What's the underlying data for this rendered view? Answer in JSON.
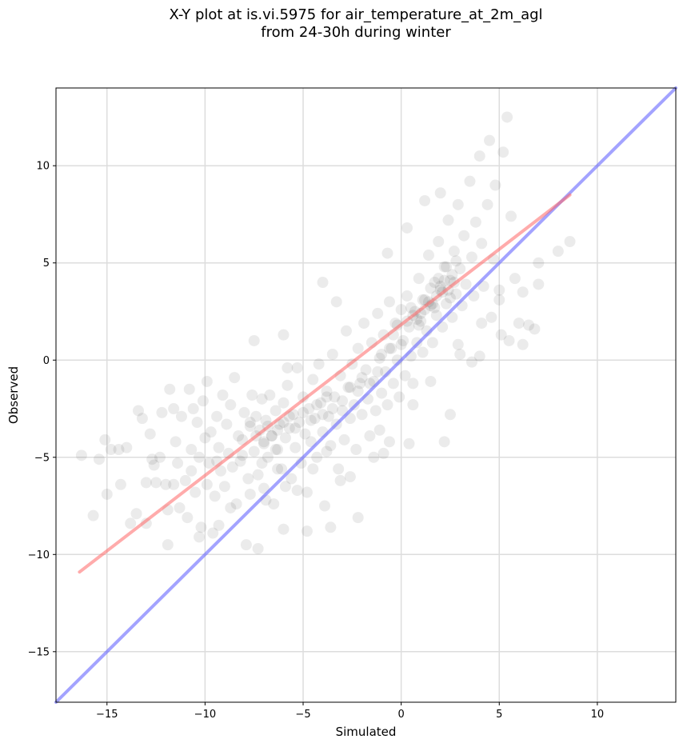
{
  "chart_data": {
    "type": "scatter",
    "title_line1": "X-Y plot at is.vi.5975 for air_temperature_at_2m_agl",
    "title_line2": "from 24-30h during winter",
    "xlabel": "Simulated",
    "ylabel": "Observed",
    "xlim": [
      -17.6,
      14.0
    ],
    "ylim": [
      -17.6,
      14.0
    ],
    "xticks": [
      -15,
      -10,
      -5,
      0,
      5,
      10
    ],
    "yticks": [
      -15,
      -10,
      -5,
      0,
      5,
      10
    ],
    "xtick_labels": [
      "−15",
      "−10",
      "−5",
      "0",
      "5",
      "10"
    ],
    "ytick_labels": [
      "−15",
      "−10",
      "−5",
      "0",
      "5",
      "10"
    ],
    "grid": true,
    "point_color": "#000000",
    "point_alpha": 0.08,
    "regression_line": {
      "x": [
        -16.4,
        8.6
      ],
      "y": [
        -10.9,
        8.5
      ],
      "color": "#ff6666"
    },
    "identity_line": {
      "x": [
        -17.6,
        14.0
      ],
      "y": [
        -17.6,
        14.0
      ],
      "color": "#6666ff"
    },
    "series": [
      {
        "points": [
          [
            -16.3,
            -4.9
          ],
          [
            -15.7,
            -8.0
          ],
          [
            -15.4,
            -5.1
          ],
          [
            -15.1,
            -4.1
          ],
          [
            -15.0,
            -6.9
          ],
          [
            -14.8,
            -4.6
          ],
          [
            -14.4,
            -4.6
          ],
          [
            -14.3,
            -6.4
          ],
          [
            -14.0,
            -4.5
          ],
          [
            -13.8,
            -8.4
          ],
          [
            -13.5,
            -7.9
          ],
          [
            -13.4,
            -2.6
          ],
          [
            -13.2,
            -3.0
          ],
          [
            -13.0,
            -8.4
          ],
          [
            -12.8,
            -3.8
          ],
          [
            -12.7,
            -5.1
          ],
          [
            -12.5,
            -6.3
          ],
          [
            -12.3,
            -5.0
          ],
          [
            -12.2,
            -2.7
          ],
          [
            -12.0,
            -6.4
          ],
          [
            -11.9,
            -9.5
          ],
          [
            -11.8,
            -1.5
          ],
          [
            -11.6,
            -2.5
          ],
          [
            -11.5,
            -4.2
          ],
          [
            -11.4,
            -5.3
          ],
          [
            -11.3,
            -7.6
          ],
          [
            -11.2,
            -2.9
          ],
          [
            -11.0,
            -6.2
          ],
          [
            -10.9,
            -8.1
          ],
          [
            -10.8,
            -1.5
          ],
          [
            -10.7,
            -4.6
          ],
          [
            -10.6,
            -2.5
          ],
          [
            -10.5,
            -6.8
          ],
          [
            -10.4,
            -3.2
          ],
          [
            -10.3,
            -5.0
          ],
          [
            -10.2,
            -8.6
          ],
          [
            -10.1,
            -2.1
          ],
          [
            -10.0,
            -4.0
          ],
          [
            -9.9,
            -1.1
          ],
          [
            -9.9,
            -6.4
          ],
          [
            -9.8,
            -5.3
          ],
          [
            -9.7,
            -3.7
          ],
          [
            -9.6,
            -8.9
          ],
          [
            -9.5,
            -7.0
          ],
          [
            -9.4,
            -2.9
          ],
          [
            -9.3,
            -4.5
          ],
          [
            -9.2,
            -5.7
          ],
          [
            -9.1,
            -1.8
          ],
          [
            -9.0,
            -6.5
          ],
          [
            -8.9,
            -3.3
          ],
          [
            -8.8,
            -4.8
          ],
          [
            -8.7,
            -2.3
          ],
          [
            -8.6,
            -5.5
          ],
          [
            -8.5,
            -0.9
          ],
          [
            -8.4,
            -7.4
          ],
          [
            -8.3,
            -3.9
          ],
          [
            -8.2,
            -5.2
          ],
          [
            -8.1,
            -4.1
          ],
          [
            -8.0,
            -2.7
          ],
          [
            -7.9,
            -9.5
          ],
          [
            -7.8,
            -6.1
          ],
          [
            -7.7,
            -3.4
          ],
          [
            -7.6,
            -1.8
          ],
          [
            -7.5,
            -4.7
          ],
          [
            -7.4,
            -2.9
          ],
          [
            -7.3,
            -5.9
          ],
          [
            -7.2,
            -3.6
          ],
          [
            -7.1,
            -2.0
          ],
          [
            -7.0,
            -4.2
          ],
          [
            -7.0,
            -6.6
          ],
          [
            -6.9,
            -3.1
          ],
          [
            -6.8,
            -5.0
          ],
          [
            -6.7,
            -1.8
          ],
          [
            -6.6,
            -3.9
          ],
          [
            -6.5,
            -7.4
          ],
          [
            -6.4,
            -2.6
          ],
          [
            -6.3,
            -4.6
          ],
          [
            -6.2,
            -3.3
          ],
          [
            -6.1,
            -5.6
          ],
          [
            -6.0,
            -2.2
          ],
          [
            -5.9,
            -4.0
          ],
          [
            -5.8,
            -1.3
          ],
          [
            -5.7,
            -3.5
          ],
          [
            -5.6,
            -6.1
          ],
          [
            -5.5,
            -2.8
          ],
          [
            -5.4,
            -4.5
          ],
          [
            -5.3,
            -0.4
          ],
          [
            -5.2,
            -3.2
          ],
          [
            -5.1,
            -5.3
          ],
          [
            -5.0,
            -1.9
          ],
          [
            -4.9,
            -3.8
          ],
          [
            -4.8,
            -6.8
          ],
          [
            -4.7,
            -2.5
          ],
          [
            -4.6,
            -4.2
          ],
          [
            -4.5,
            -1.0
          ],
          [
            -4.4,
            -3.0
          ],
          [
            -4.3,
            -5.0
          ],
          [
            -4.2,
            -0.2
          ],
          [
            -4.1,
            -2.2
          ],
          [
            -4.0,
            -3.7
          ],
          [
            -3.9,
            -7.5
          ],
          [
            -3.8,
            -1.6
          ],
          [
            -3.7,
            -2.9
          ],
          [
            -3.6,
            -4.4
          ],
          [
            -3.5,
            0.3
          ],
          [
            -3.4,
            -1.9
          ],
          [
            -3.3,
            -3.3
          ],
          [
            -3.2,
            -5.6
          ],
          [
            -3.1,
            -0.8
          ],
          [
            -3.0,
            -2.6
          ],
          [
            -2.9,
            -4.1
          ],
          [
            -2.8,
            1.5
          ],
          [
            -2.7,
            -1.4
          ],
          [
            -2.6,
            -3.0
          ],
          [
            -2.5,
            -0.2
          ],
          [
            -2.4,
            -2.3
          ],
          [
            -2.3,
            -4.6
          ],
          [
            -2.2,
            0.6
          ],
          [
            -2.1,
            -1.2
          ],
          [
            -2.0,
            -2.8
          ],
          [
            -1.9,
            1.9
          ],
          [
            -1.8,
            -0.5
          ],
          [
            -1.7,
            -2.0
          ],
          [
            -1.6,
            -3.9
          ],
          [
            -1.5,
            0.9
          ],
          [
            -1.4,
            -1.1
          ],
          [
            -1.3,
            -2.6
          ],
          [
            -1.2,
            2.4
          ],
          [
            -1.1,
            0.1
          ],
          [
            -1.0,
            -1.7
          ],
          [
            -0.9,
            1.3
          ],
          [
            -0.8,
            -0.6
          ],
          [
            -0.7,
            -2.3
          ],
          [
            -0.6,
            3.0
          ],
          [
            -0.5,
            0.6
          ],
          [
            -0.4,
            -1.2
          ],
          [
            -0.3,
            1.9
          ],
          [
            -0.2,
            0.0
          ],
          [
            -0.1,
            -1.9
          ],
          [
            0.0,
            2.6
          ],
          [
            0.1,
            1.0
          ],
          [
            0.2,
            -0.8
          ],
          [
            0.3,
            3.3
          ],
          [
            0.4,
            1.7
          ],
          [
            0.5,
            0.2
          ],
          [
            0.6,
            -1.2
          ],
          [
            0.7,
            2.5
          ],
          [
            0.8,
            0.9
          ],
          [
            0.9,
            4.2
          ],
          [
            1.0,
            2.0
          ],
          [
            1.1,
            0.4
          ],
          [
            1.2,
            3.1
          ],
          [
            1.3,
            1.5
          ],
          [
            1.4,
            5.4
          ],
          [
            1.5,
            2.8
          ],
          [
            1.6,
            0.9
          ],
          [
            1.7,
            4.0
          ],
          [
            1.8,
            2.3
          ],
          [
            1.9,
            6.1
          ],
          [
            2.0,
            3.6
          ],
          [
            2.1,
            1.7
          ],
          [
            2.2,
            4.8
          ],
          [
            2.3,
            2.9
          ],
          [
            2.4,
            7.2
          ],
          [
            2.5,
            4.1
          ],
          [
            2.6,
            2.2
          ],
          [
            2.7,
            5.6
          ],
          [
            2.8,
            3.4
          ],
          [
            2.9,
            8.0
          ],
          [
            3.0,
            4.7
          ],
          [
            3.1,
            2.8
          ],
          [
            3.2,
            6.4
          ],
          [
            3.3,
            3.9
          ],
          [
            3.5,
            9.2
          ],
          [
            3.6,
            5.3
          ],
          [
            3.7,
            3.3
          ],
          [
            3.8,
            7.1
          ],
          [
            4.0,
            10.5
          ],
          [
            4.1,
            6.0
          ],
          [
            4.2,
            3.8
          ],
          [
            4.4,
            8.0
          ],
          [
            4.5,
            11.3
          ],
          [
            4.7,
            5.2
          ],
          [
            4.8,
            9.0
          ],
          [
            5.0,
            3.1
          ],
          [
            5.2,
            10.7
          ],
          [
            5.4,
            12.5
          ],
          [
            5.6,
            7.4
          ],
          [
            5.8,
            4.2
          ],
          [
            6.2,
            3.5
          ],
          [
            6.5,
            1.8
          ],
          [
            6.8,
            1.6
          ],
          [
            7.0,
            5.0
          ],
          [
            7.0,
            3.9
          ],
          [
            8.0,
            5.6
          ],
          [
            8.6,
            6.1
          ],
          [
            5.1,
            1.3
          ],
          [
            5.5,
            1.0
          ],
          [
            6.0,
            1.9
          ],
          [
            6.2,
            0.8
          ],
          [
            -7.5,
            1.0
          ],
          [
            -6.0,
            1.3
          ],
          [
            -5.8,
            -0.4
          ],
          [
            -4.0,
            4.0
          ],
          [
            -3.3,
            3.0
          ],
          [
            -0.7,
            5.5
          ],
          [
            0.3,
            6.8
          ],
          [
            1.2,
            8.2
          ],
          [
            2.0,
            8.6
          ],
          [
            2.2,
            -4.2
          ],
          [
            2.5,
            -2.8
          ],
          [
            0.4,
            -4.3
          ],
          [
            -1.1,
            -3.6
          ],
          [
            -2.2,
            -8.1
          ],
          [
            -3.6,
            -8.6
          ],
          [
            -4.8,
            -8.8
          ],
          [
            -6.0,
            -8.7
          ],
          [
            -7.3,
            -9.7
          ],
          [
            -9.3,
            -8.5
          ],
          [
            -10.3,
            -9.1
          ],
          [
            -3.8,
            -4.7
          ],
          [
            -2.6,
            -6.0
          ],
          [
            -1.4,
            -5.0
          ],
          [
            -0.6,
            -4.2
          ],
          [
            -5.9,
            -6.5
          ],
          [
            -6.9,
            -7.2
          ],
          [
            -7.7,
            -6.9
          ],
          [
            -8.7,
            -7.6
          ],
          [
            -11.9,
            -7.7
          ],
          [
            -13.0,
            -6.3
          ],
          [
            -0.9,
            -4.8
          ],
          [
            0.6,
            -2.3
          ],
          [
            1.5,
            -1.1
          ],
          [
            3.0,
            0.3
          ],
          [
            4.0,
            0.2
          ],
          [
            3.6,
            -0.1
          ],
          [
            2.9,
            0.8
          ],
          [
            4.6,
            2.2
          ],
          [
            5.0,
            3.6
          ],
          [
            4.1,
            1.9
          ],
          [
            -4.5,
            -5.6
          ],
          [
            -5.3,
            -6.7
          ],
          [
            -6.3,
            -5.6
          ],
          [
            -7.1,
            -5.3
          ],
          [
            -8.1,
            -4.9
          ],
          [
            -9.4,
            -5.2
          ],
          [
            -10.7,
            -5.7
          ],
          [
            -11.6,
            -6.4
          ],
          [
            -12.6,
            -5.4
          ],
          [
            -3.1,
            -6.2
          ]
        ]
      },
      {
        "points": [
          [
            2.0,
            3.8
          ],
          [
            2.2,
            4.1
          ],
          [
            2.4,
            3.6
          ],
          [
            1.8,
            3.3
          ],
          [
            2.6,
            4.4
          ],
          [
            1.6,
            2.9
          ],
          [
            2.3,
            4.8
          ],
          [
            1.9,
            4.2
          ],
          [
            2.5,
            3.2
          ],
          [
            2.1,
            3.5
          ],
          [
            1.4,
            3.0
          ],
          [
            1.2,
            2.6
          ],
          [
            1.0,
            2.4
          ],
          [
            0.8,
            2.1
          ],
          [
            1.7,
            2.7
          ],
          [
            2.7,
            4.0
          ],
          [
            0.6,
            2.3
          ],
          [
            1.5,
            3.7
          ],
          [
            2.8,
            5.1
          ],
          [
            0.9,
            1.8
          ],
          [
            -6.3,
            -3.6
          ],
          [
            -6.6,
            -3.9
          ],
          [
            -6.0,
            -3.2
          ],
          [
            -7.0,
            -4.3
          ],
          [
            -5.7,
            -2.9
          ],
          [
            -6.8,
            -3.4
          ],
          [
            -7.4,
            -3.9
          ],
          [
            -5.4,
            -3.5
          ],
          [
            -6.4,
            -4.6
          ],
          [
            -7.7,
            -3.2
          ],
          [
            -2.2,
            -1.6
          ],
          [
            -2.0,
            -0.9
          ],
          [
            -1.6,
            -1.2
          ],
          [
            -3.0,
            -2.1
          ],
          [
            -1.2,
            -0.6
          ],
          [
            -2.6,
            -1.4
          ],
          [
            -0.4,
            1.3
          ],
          [
            0.0,
            0.8
          ],
          [
            -0.2,
            1.8
          ],
          [
            0.3,
            2.0
          ],
          [
            -4.3,
            -2.3
          ],
          [
            -3.8,
            -1.9
          ],
          [
            -4.0,
            -2.8
          ],
          [
            -3.5,
            -2.5
          ],
          [
            -5.0,
            -2.7
          ],
          [
            -4.6,
            -3.1
          ],
          [
            -1.0,
            0.3
          ],
          [
            -0.6,
            0.6
          ],
          [
            0.5,
            2.7
          ],
          [
            1.1,
            3.1
          ]
        ]
      }
    ]
  }
}
